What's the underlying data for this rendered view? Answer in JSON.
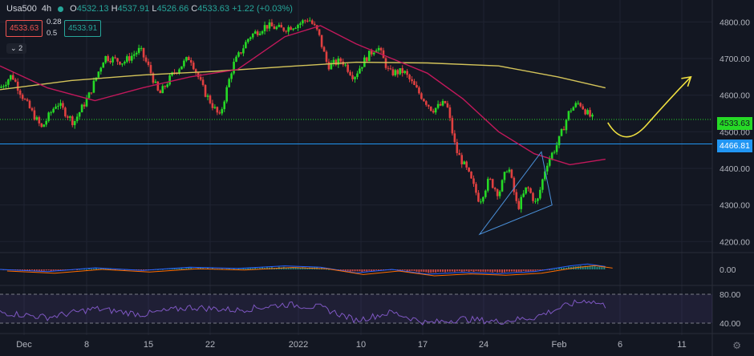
{
  "header": {
    "symbol": "Usa500",
    "timeframe": "4h",
    "open_label": "O",
    "open": "4532.13",
    "high_label": "H",
    "high": "4537.91",
    "low_label": "L",
    "low": "4526.66",
    "close_label": "C",
    "close": "4533.63",
    "change": "+1.22 (+0.03%)"
  },
  "trade_box": {
    "sell": "4533.63",
    "buy": "4533.91",
    "spread_top": "0.28",
    "spread_bottom": "0.5"
  },
  "indicators_toggle": "2",
  "price_labels": {
    "current": "4533.63",
    "hline": "4466.81"
  },
  "colors": {
    "background": "#131722",
    "up": "#26d926",
    "down": "#e04040",
    "ma_long": "#d4c45a",
    "ma_short": "#c2185b",
    "hline": "#2196f3",
    "current_price": "#26d926",
    "projection": "#f0e040",
    "rsi": "#7e57c2"
  },
  "chart_data": {
    "type": "candlestick",
    "symbol": "Usa500",
    "y_ticks": [
      "4800.00",
      "4700.00",
      "4600.00",
      "4500.00",
      "4400.00",
      "4300.00",
      "4200.00"
    ],
    "ylim": [
      4170,
      4860
    ],
    "x_ticks": [
      "Dec",
      "8",
      "15",
      "22",
      "2022",
      "10",
      "17",
      "24",
      "Feb",
      "6",
      "11"
    ],
    "horizontal_line": 4466.81,
    "current_price": 4533.63,
    "price_path": [
      {
        "i": 0,
        "v": 4620
      },
      {
        "i": 10,
        "v": 4655
      },
      {
        "i": 20,
        "v": 4590
      },
      {
        "i": 35,
        "v": 4510
      },
      {
        "i": 48,
        "v": 4580
      },
      {
        "i": 62,
        "v": 4525
      },
      {
        "i": 75,
        "v": 4600
      },
      {
        "i": 88,
        "v": 4705
      },
      {
        "i": 104,
        "v": 4690
      },
      {
        "i": 118,
        "v": 4725
      },
      {
        "i": 126,
        "v": 4670
      },
      {
        "i": 134,
        "v": 4600
      },
      {
        "i": 146,
        "v": 4660
      },
      {
        "i": 160,
        "v": 4705
      },
      {
        "i": 172,
        "v": 4610
      },
      {
        "i": 185,
        "v": 4540
      },
      {
        "i": 196,
        "v": 4680
      },
      {
        "i": 210,
        "v": 4760
      },
      {
        "i": 224,
        "v": 4790
      },
      {
        "i": 238,
        "v": 4780
      },
      {
        "i": 252,
        "v": 4795
      },
      {
        "i": 260,
        "v": 4810
      },
      {
        "i": 268,
        "v": 4770
      },
      {
        "i": 276,
        "v": 4680
      },
      {
        "i": 288,
        "v": 4695
      },
      {
        "i": 298,
        "v": 4650
      },
      {
        "i": 308,
        "v": 4700
      },
      {
        "i": 318,
        "v": 4735
      },
      {
        "i": 328,
        "v": 4660
      },
      {
        "i": 340,
        "v": 4665
      },
      {
        "i": 352,
        "v": 4610
      },
      {
        "i": 364,
        "v": 4560
      },
      {
        "i": 376,
        "v": 4580
      },
      {
        "i": 384,
        "v": 4450
      },
      {
        "i": 394,
        "v": 4390
      },
      {
        "i": 404,
        "v": 4310
      },
      {
        "i": 412,
        "v": 4370
      },
      {
        "i": 420,
        "v": 4330
      },
      {
        "i": 428,
        "v": 4410
      },
      {
        "i": 436,
        "v": 4290
      },
      {
        "i": 444,
        "v": 4350
      },
      {
        "i": 452,
        "v": 4300
      },
      {
        "i": 460,
        "v": 4410
      },
      {
        "i": 470,
        "v": 4470
      },
      {
        "i": 480,
        "v": 4560
      },
      {
        "i": 488,
        "v": 4580
      },
      {
        "i": 496,
        "v": 4545
      },
      {
        "i": 500,
        "v": 4533
      }
    ],
    "ma_long": [
      {
        "i": 0,
        "v": 4615
      },
      {
        "i": 60,
        "v": 4640
      },
      {
        "i": 120,
        "v": 4655
      },
      {
        "i": 180,
        "v": 4665
      },
      {
        "i": 250,
        "v": 4680
      },
      {
        "i": 300,
        "v": 4690
      },
      {
        "i": 360,
        "v": 4688
      },
      {
        "i": 420,
        "v": 4680
      },
      {
        "i": 470,
        "v": 4650
      },
      {
        "i": 510,
        "v": 4620
      }
    ],
    "ma_short": [
      {
        "i": 0,
        "v": 4680
      },
      {
        "i": 40,
        "v": 4620
      },
      {
        "i": 80,
        "v": 4585
      },
      {
        "i": 120,
        "v": 4620
      },
      {
        "i": 160,
        "v": 4650
      },
      {
        "i": 200,
        "v": 4670
      },
      {
        "i": 240,
        "v": 4760
      },
      {
        "i": 270,
        "v": 4790
      },
      {
        "i": 300,
        "v": 4740
      },
      {
        "i": 330,
        "v": 4700
      },
      {
        "i": 360,
        "v": 4660
      },
      {
        "i": 390,
        "v": 4590
      },
      {
        "i": 420,
        "v": 4500
      },
      {
        "i": 450,
        "v": 4440
      },
      {
        "i": 480,
        "v": 4410
      },
      {
        "i": 510,
        "v": 4425
      }
    ],
    "triangle": [
      {
        "i": 404,
        "v": 4220
      },
      {
        "i": 456,
        "v": 4445
      },
      {
        "i": 465,
        "v": 4300
      }
    ],
    "projection": [
      {
        "i": 512,
        "v": 4525
      },
      {
        "i": 526,
        "v": 4480
      },
      {
        "i": 545,
        "v": 4520
      },
      {
        "i": 565,
        "v": 4620
      },
      {
        "i": 582,
        "v": 4650
      }
    ],
    "macd": {
      "ylabel": "0.00",
      "ylim": [
        -1,
        1
      ]
    },
    "rsi": {
      "levels": [
        80,
        40
      ],
      "tick_labels": [
        "80.00",
        "40.00"
      ],
      "ylim": [
        30,
        90
      ],
      "path": [
        {
          "i": 0,
          "v": 55
        },
        {
          "i": 40,
          "v": 48
        },
        {
          "i": 80,
          "v": 60
        },
        {
          "i": 120,
          "v": 52
        },
        {
          "i": 160,
          "v": 62
        },
        {
          "i": 200,
          "v": 58
        },
        {
          "i": 240,
          "v": 66
        },
        {
          "i": 270,
          "v": 62
        },
        {
          "i": 300,
          "v": 44
        },
        {
          "i": 330,
          "v": 55
        },
        {
          "i": 360,
          "v": 40
        },
        {
          "i": 390,
          "v": 46
        },
        {
          "i": 420,
          "v": 42
        },
        {
          "i": 450,
          "v": 48
        },
        {
          "i": 480,
          "v": 66
        },
        {
          "i": 495,
          "v": 72
        },
        {
          "i": 510,
          "v": 64
        }
      ]
    }
  }
}
